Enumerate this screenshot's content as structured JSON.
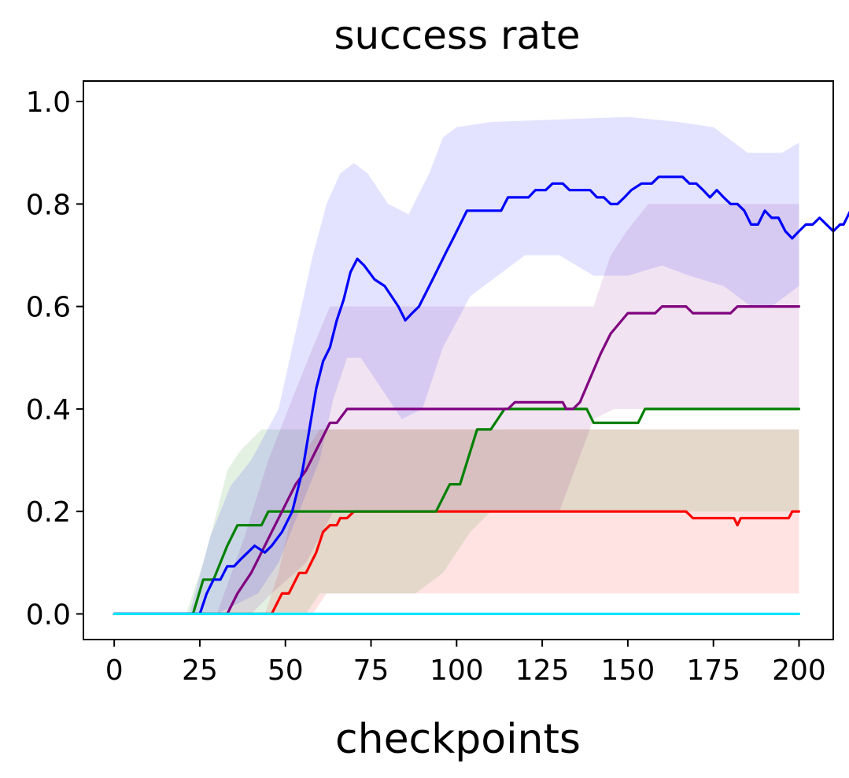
{
  "chart_data": {
    "type": "line",
    "title": "success rate",
    "xlabel": "checkpoints",
    "ylabel": "",
    "xlim": [
      -9,
      210
    ],
    "ylim": [
      -0.05,
      1.04
    ],
    "xticks": [
      "0",
      "25",
      "50",
      "75",
      "100",
      "125",
      "150",
      "175",
      "200"
    ],
    "xtick_values": [
      0,
      25,
      50,
      75,
      100,
      125,
      150,
      175,
      200
    ],
    "yticks": [
      "0.0",
      "0.2",
      "0.4",
      "0.6",
      "0.8",
      "1.0"
    ],
    "ytick_values": [
      0.0,
      0.2,
      0.4,
      0.6,
      0.8,
      1.0
    ],
    "grid": false,
    "legend": "none",
    "series": [
      {
        "color": "#ff0000",
        "points": [
          [
            0,
            0
          ],
          [
            46,
            0
          ],
          [
            49,
            0.04
          ],
          [
            51,
            0.04
          ],
          [
            54,
            0.08
          ],
          [
            56,
            0.08
          ],
          [
            59,
            0.12
          ],
          [
            61,
            0.16
          ],
          [
            63,
            0.173
          ],
          [
            65,
            0.173
          ],
          [
            66,
            0.187
          ],
          [
            68,
            0.187
          ],
          [
            70,
            0.2
          ],
          [
            167,
            0.2
          ],
          [
            169,
            0.187
          ],
          [
            181,
            0.187
          ],
          [
            182,
            0.173
          ],
          [
            183,
            0.187
          ],
          [
            197,
            0.187
          ],
          [
            198,
            0.2
          ],
          [
            200,
            0.2
          ]
        ],
        "band_upper": [
          [
            0,
            0
          ],
          [
            44,
            0
          ],
          [
            48,
            0.08
          ],
          [
            52,
            0.2
          ],
          [
            56,
            0.32
          ],
          [
            60,
            0.36
          ],
          [
            200,
            0.36
          ]
        ],
        "band_lower": [
          [
            0,
            0
          ],
          [
            58,
            0
          ],
          [
            60,
            0.02
          ],
          [
            62,
            0.04
          ],
          [
            195,
            0.04
          ],
          [
            200,
            0.04
          ]
        ]
      },
      {
        "color": "#008000",
        "points": [
          [
            0,
            0
          ],
          [
            23,
            0
          ],
          [
            26,
            0.067
          ],
          [
            29,
            0.067
          ],
          [
            33,
            0.133
          ],
          [
            36,
            0.173
          ],
          [
            43,
            0.173
          ],
          [
            45,
            0.2
          ],
          [
            94,
            0.2
          ],
          [
            98,
            0.253
          ],
          [
            101,
            0.253
          ],
          [
            106,
            0.36
          ],
          [
            110,
            0.36
          ],
          [
            114,
            0.4
          ],
          [
            138,
            0.4
          ],
          [
            140,
            0.373
          ],
          [
            153,
            0.373
          ],
          [
            155,
            0.4
          ],
          [
            200,
            0.4
          ]
        ],
        "band_upper": [
          [
            0,
            0
          ],
          [
            21,
            0
          ],
          [
            26,
            0.1
          ],
          [
            30,
            0.2
          ],
          [
            33,
            0.28
          ],
          [
            37,
            0.32
          ],
          [
            43,
            0.36
          ],
          [
            200,
            0.36
          ]
        ],
        "band_lower": [
          [
            0,
            0
          ],
          [
            56,
            0
          ],
          [
            60,
            0.04
          ],
          [
            88,
            0.04
          ],
          [
            96,
            0.08
          ],
          [
            104,
            0.16
          ],
          [
            110,
            0.2
          ],
          [
            200,
            0.2
          ]
        ]
      },
      {
        "color": "#800080",
        "points": [
          [
            0,
            0
          ],
          [
            33,
            0
          ],
          [
            36,
            0.04
          ],
          [
            40,
            0.08
          ],
          [
            43,
            0.12
          ],
          [
            46,
            0.16
          ],
          [
            49,
            0.2
          ],
          [
            53,
            0.253
          ],
          [
            56,
            0.28
          ],
          [
            59,
            0.32
          ],
          [
            63,
            0.373
          ],
          [
            65,
            0.373
          ],
          [
            68,
            0.4
          ],
          [
            115,
            0.4
          ],
          [
            117,
            0.413
          ],
          [
            131,
            0.413
          ],
          [
            132,
            0.4
          ],
          [
            134,
            0.4
          ],
          [
            136,
            0.413
          ],
          [
            142,
            0.507
          ],
          [
            145,
            0.547
          ],
          [
            150,
            0.587
          ],
          [
            158,
            0.587
          ],
          [
            160,
            0.6
          ],
          [
            167,
            0.6
          ],
          [
            169,
            0.587
          ],
          [
            180,
            0.587
          ],
          [
            182,
            0.6
          ],
          [
            200,
            0.6
          ]
        ],
        "band_upper": [
          [
            0,
            0
          ],
          [
            30,
            0
          ],
          [
            38,
            0.15
          ],
          [
            45,
            0.3
          ],
          [
            52,
            0.42
          ],
          [
            58,
            0.52
          ],
          [
            63,
            0.6
          ],
          [
            110,
            0.6
          ],
          [
            140,
            0.6
          ],
          [
            145,
            0.7
          ],
          [
            150,
            0.75
          ],
          [
            156,
            0.8
          ],
          [
            200,
            0.8
          ]
        ],
        "band_lower": [
          [
            0,
            0
          ],
          [
            40,
            0
          ],
          [
            46,
            0.04
          ],
          [
            56,
            0.1
          ],
          [
            64,
            0.2
          ],
          [
            120,
            0.2
          ],
          [
            130,
            0.2
          ],
          [
            140,
            0.38
          ],
          [
            146,
            0.4
          ],
          [
            200,
            0.4
          ]
        ]
      },
      {
        "color": "#0000ff",
        "points": [
          [
            0,
            0
          ],
          [
            25,
            0
          ],
          [
            27,
            0.04
          ],
          [
            29,
            0.067
          ],
          [
            31,
            0.067
          ],
          [
            33,
            0.093
          ],
          [
            35,
            0.093
          ],
          [
            37,
            0.107
          ],
          [
            39,
            0.12
          ],
          [
            41,
            0.133
          ],
          [
            44,
            0.12
          ],
          [
            46,
            0.133
          ],
          [
            49,
            0.16
          ],
          [
            52,
            0.2
          ],
          [
            55,
            0.28
          ],
          [
            57,
            0.36
          ],
          [
            59,
            0.44
          ],
          [
            61,
            0.493
          ],
          [
            63,
            0.52
          ],
          [
            65,
            0.573
          ],
          [
            67,
            0.613
          ],
          [
            69,
            0.667
          ],
          [
            71,
            0.693
          ],
          [
            73,
            0.68
          ],
          [
            76,
            0.653
          ],
          [
            79,
            0.64
          ],
          [
            83,
            0.6
          ],
          [
            85,
            0.573
          ],
          [
            87,
            0.587
          ],
          [
            89,
            0.6
          ],
          [
            93,
            0.653
          ],
          [
            97,
            0.707
          ],
          [
            99,
            0.733
          ],
          [
            101,
            0.76
          ],
          [
            103,
            0.787
          ],
          [
            113,
            0.787
          ],
          [
            115,
            0.813
          ],
          [
            121,
            0.813
          ],
          [
            123,
            0.827
          ],
          [
            126,
            0.827
          ],
          [
            128,
            0.84
          ],
          [
            131,
            0.84
          ],
          [
            133,
            0.827
          ],
          [
            139,
            0.827
          ],
          [
            141,
            0.813
          ],
          [
            143,
            0.813
          ],
          [
            145,
            0.8
          ],
          [
            147,
            0.8
          ],
          [
            149,
            0.813
          ],
          [
            151,
            0.827
          ],
          [
            154,
            0.84
          ],
          [
            157,
            0.84
          ],
          [
            159,
            0.853
          ],
          [
            166,
            0.853
          ],
          [
            168,
            0.84
          ],
          [
            170,
            0.84
          ],
          [
            172,
            0.827
          ],
          [
            174,
            0.813
          ],
          [
            176,
            0.827
          ],
          [
            178,
            0.813
          ],
          [
            180,
            0.8
          ],
          [
            182,
            0.8
          ],
          [
            184,
            0.787
          ],
          [
            186,
            0.76
          ],
          [
            188,
            0.76
          ],
          [
            190,
            0.787
          ],
          [
            192,
            0.773
          ],
          [
            194,
            0.773
          ],
          [
            196,
            0.747
          ],
          [
            198,
            0.733
          ],
          [
            200,
            0.747
          ],
          [
            202,
            0.76
          ],
          [
            204,
            0.76
          ],
          [
            206,
            0.773
          ],
          [
            208,
            0.76
          ],
          [
            210,
            0.747
          ],
          [
            212,
            0.76
          ],
          [
            213,
            0.76
          ],
          [
            215,
            0.787
          ],
          [
            217,
            0.773
          ],
          [
            218,
            0.773
          ]
        ],
        "band_upper": [
          [
            0,
            0
          ],
          [
            22,
            0
          ],
          [
            28,
            0.15
          ],
          [
            34,
            0.25
          ],
          [
            40,
            0.3
          ],
          [
            48,
            0.4
          ],
          [
            53,
            0.55
          ],
          [
            58,
            0.7
          ],
          [
            62,
            0.8
          ],
          [
            66,
            0.86
          ],
          [
            70,
            0.88
          ],
          [
            74,
            0.86
          ],
          [
            80,
            0.8
          ],
          [
            86,
            0.78
          ],
          [
            92,
            0.86
          ],
          [
            96,
            0.93
          ],
          [
            100,
            0.95
          ],
          [
            110,
            0.96
          ],
          [
            150,
            0.97
          ],
          [
            165,
            0.96
          ],
          [
            175,
            0.95
          ],
          [
            185,
            0.9
          ],
          [
            195,
            0.9
          ],
          [
            200,
            0.92
          ]
        ],
        "band_lower": [
          [
            0,
            0
          ],
          [
            30,
            0
          ],
          [
            36,
            0.02
          ],
          [
            42,
            0.04
          ],
          [
            48,
            0.1
          ],
          [
            54,
            0.2
          ],
          [
            60,
            0.3
          ],
          [
            64,
            0.42
          ],
          [
            68,
            0.5
          ],
          [
            72,
            0.5
          ],
          [
            78,
            0.44
          ],
          [
            84,
            0.38
          ],
          [
            90,
            0.4
          ],
          [
            96,
            0.52
          ],
          [
            104,
            0.62
          ],
          [
            112,
            0.66
          ],
          [
            120,
            0.7
          ],
          [
            130,
            0.7
          ],
          [
            140,
            0.66
          ],
          [
            150,
            0.66
          ],
          [
            160,
            0.68
          ],
          [
            168,
            0.66
          ],
          [
            178,
            0.64
          ],
          [
            186,
            0.6
          ],
          [
            192,
            0.6
          ],
          [
            200,
            0.64
          ]
        ]
      },
      {
        "color": "#00e5ff",
        "points": [
          [
            0,
            0
          ],
          [
            200,
            0
          ]
        ]
      }
    ]
  }
}
